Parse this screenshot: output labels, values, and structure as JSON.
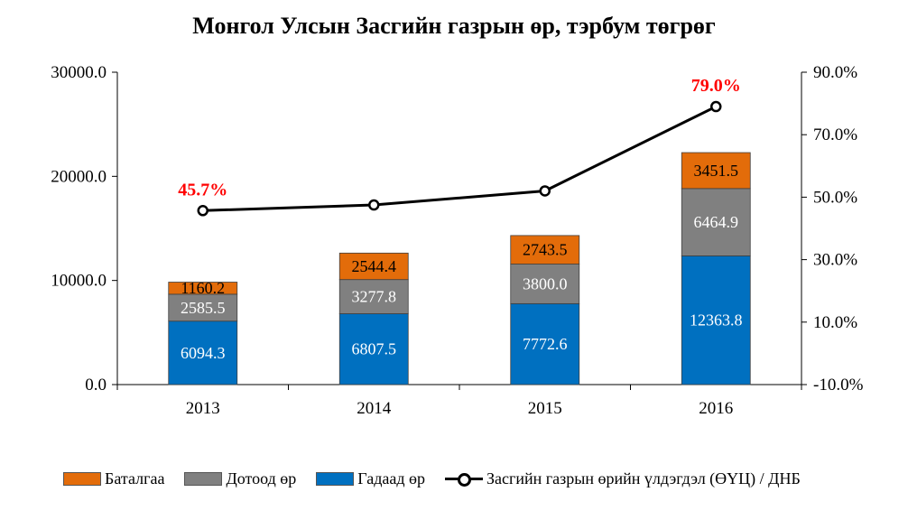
{
  "chart_data": {
    "type": "bar",
    "stacked": true,
    "title": "Монгол Улсын Засгийн газрын өр, тэрбум төгрөг",
    "categories": [
      "2013",
      "2014",
      "2015",
      "2016"
    ],
    "series": [
      {
        "name": "Гадаад өр",
        "color": "#0070C0",
        "values": [
          6094.3,
          6807.5,
          7772.6,
          12363.8
        ]
      },
      {
        "name": "Дотоод өр",
        "color": "#808080",
        "values": [
          2585.5,
          3277.8,
          3800.0,
          6464.9
        ]
      },
      {
        "name": "Баталгаа",
        "color": "#E36C0A",
        "values": [
          1160.2,
          2544.4,
          2743.5,
          3451.5
        ]
      }
    ],
    "line_series": {
      "name": "Засгийн газрын өрийн үлдэгдэл (ӨҮЦ) / ДНБ",
      "axis": "right",
      "values": [
        45.7,
        47.5,
        52.0,
        79.0
      ],
      "labeled": [
        true,
        false,
        false,
        true
      ],
      "labels": [
        "45.7%",
        "",
        "",
        "79.0%"
      ]
    },
    "y_left": {
      "ylim": [
        0,
        30000
      ],
      "ticks": [
        "0.0",
        "10000.0",
        "20000.0",
        "30000.0"
      ]
    },
    "y_right": {
      "ylim": [
        -10,
        90
      ],
      "ticks": [
        "-10.0%",
        "10.0%",
        "30.0%",
        "50.0%",
        "70.0%",
        "90.0%"
      ]
    },
    "label_color": "#FF0000",
    "legend_position": "bottom",
    "grid": false
  },
  "legend": {
    "items": [
      "Баталгаа",
      "Дотоод өр",
      "Гадаад өр"
    ],
    "line_label": "Засгийн газрын өрийн үлдэгдэл (ӨҮЦ) / ДНБ"
  }
}
